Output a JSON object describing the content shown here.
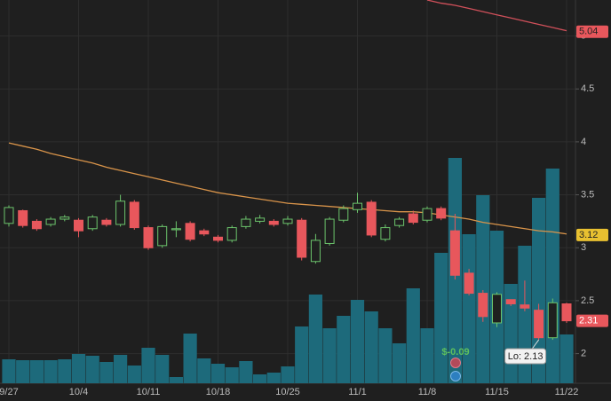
{
  "chart_data": {
    "type": "candlestick",
    "categories": [
      "9/27",
      null,
      null,
      null,
      null,
      "10/4",
      null,
      null,
      null,
      null,
      "10/11",
      null,
      null,
      null,
      null,
      "10/18",
      null,
      null,
      null,
      null,
      "10/25",
      null,
      null,
      null,
      null,
      "11/1",
      null,
      null,
      null,
      null,
      "11/8",
      null,
      null,
      null,
      null,
      "11/15",
      null,
      null,
      null,
      null,
      "11/22"
    ],
    "open": [
      3.23,
      3.35,
      3.25,
      3.22,
      3.27,
      3.26,
      3.18,
      3.26,
      3.22,
      3.43,
      3.19,
      3.02,
      3.17,
      3.23,
      3.16,
      3.1,
      3.07,
      3.2,
      3.25,
      3.25,
      3.23,
      3.26,
      2.87,
      3.04,
      3.26,
      3.36,
      3.43,
      3.08,
      3.21,
      3.32,
      3.26,
      3.37,
      3.16,
      2.76,
      2.57,
      2.29,
      2.51,
      2.46,
      2.41,
      2.15,
      2.47
    ],
    "high": [
      3.4,
      3.36,
      3.27,
      3.29,
      3.31,
      3.28,
      3.31,
      3.28,
      3.5,
      3.45,
      3.21,
      3.22,
      3.25,
      3.25,
      3.18,
      3.12,
      3.21,
      3.3,
      3.31,
      3.27,
      3.3,
      3.28,
      3.13,
      3.29,
      3.4,
      3.52,
      3.45,
      3.22,
      3.29,
      3.35,
      3.39,
      3.39,
      3.32,
      2.8,
      2.6,
      2.58,
      2.5,
      2.69,
      2.47,
      2.52,
      2.48
    ],
    "low": [
      3.2,
      3.19,
      3.16,
      3.2,
      3.25,
      3.1,
      3.16,
      3.2,
      3.2,
      3.17,
      2.98,
      3.0,
      3.1,
      3.06,
      3.11,
      3.05,
      3.05,
      3.18,
      3.23,
      3.2,
      3.21,
      2.88,
      2.85,
      3.02,
      3.24,
      3.33,
      3.1,
      3.06,
      3.19,
      3.22,
      3.24,
      3.26,
      2.7,
      2.55,
      2.3,
      2.25,
      2.45,
      2.4,
      2.13,
      2.13,
      2.29
    ],
    "close": [
      3.38,
      3.21,
      3.18,
      3.27,
      3.29,
      3.16,
      3.29,
      3.22,
      3.44,
      3.19,
      3.0,
      3.2,
      3.18,
      3.08,
      3.13,
      3.07,
      3.19,
      3.27,
      3.28,
      3.22,
      3.27,
      2.91,
      3.07,
      3.27,
      3.37,
      3.42,
      3.12,
      3.19,
      3.27,
      3.24,
      3.37,
      3.28,
      2.74,
      2.57,
      2.35,
      2.56,
      2.47,
      2.43,
      2.15,
      2.48,
      2.31
    ],
    "up_color": "#6cc46c",
    "down_color": "#e8575c",
    "last_tag": 2.31,
    "volume": {
      "values": [
        27,
        26,
        26,
        26,
        27,
        33,
        31,
        24,
        32,
        20,
        40,
        32,
        7,
        56,
        28,
        22,
        18,
        25,
        10,
        12,
        19,
        64,
        100,
        62,
        76,
        94,
        81,
        62,
        45,
        107,
        62,
        147,
        254,
        168,
        212,
        172,
        112,
        155,
        209,
        242,
        55
      ],
      "color": "#1d6a7b",
      "ylim": [
        0,
        432
      ]
    },
    "moving_averages": [
      {
        "color": "#d9944a",
        "tag": 3.12,
        "tag_color": "#e8c030",
        "values": [
          3.99,
          3.96,
          3.93,
          3.89,
          3.86,
          3.83,
          3.8,
          3.76,
          3.73,
          3.7,
          3.67,
          3.64,
          3.61,
          3.58,
          3.55,
          3.52,
          3.5,
          3.48,
          3.46,
          3.44,
          3.42,
          3.41,
          3.4,
          3.39,
          3.38,
          3.37,
          3.36,
          3.35,
          3.34,
          3.34,
          3.33,
          3.31,
          3.29,
          3.27,
          3.24,
          3.22,
          3.2,
          3.18,
          3.16,
          3.15,
          3.13
        ]
      },
      {
        "color": "#d0505a",
        "tag": 5.04,
        "tag_color": "#e8575c",
        "values": [
          null,
          null,
          null,
          null,
          null,
          null,
          null,
          null,
          null,
          null,
          null,
          null,
          null,
          null,
          null,
          null,
          null,
          null,
          null,
          null,
          null,
          null,
          null,
          null,
          null,
          null,
          null,
          null,
          null,
          null,
          5.34,
          5.31,
          5.29,
          5.26,
          5.23,
          5.2,
          5.17,
          5.14,
          5.11,
          5.08,
          5.05
        ]
      }
    ],
    "ylim": [
      1.72,
      5.34
    ],
    "yticks": [
      2,
      2.5,
      3,
      3.5,
      4,
      4.5,
      5
    ],
    "grid": true,
    "earnings_label": "$-0.09",
    "low_annotation": "Lo: 2.13"
  }
}
